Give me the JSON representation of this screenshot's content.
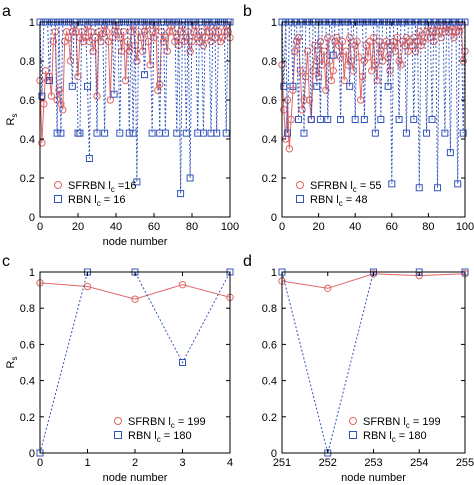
{
  "chart_data": [
    {
      "type": "line",
      "panel_label": "a",
      "xlabel": "node number",
      "ylabel": "R_s",
      "xlim": [
        0,
        100
      ],
      "ylim": [
        0,
        1
      ],
      "xticks": [
        0,
        20,
        40,
        60,
        80,
        100
      ],
      "yticks": [
        0,
        0.2,
        0.4,
        0.6,
        0.8,
        1
      ],
      "grid": false,
      "legend_position": "bottom-left",
      "series": [
        {
          "name": "SFRBN l_c =16",
          "color": "#e06666",
          "marker": "circle",
          "line": "solid",
          "x": [
            0,
            1,
            2,
            3,
            4,
            5,
            6,
            7,
            8,
            9,
            10,
            11,
            12,
            13,
            14,
            15,
            16,
            17,
            18,
            19,
            20,
            21,
            22,
            23,
            24,
            25,
            26,
            27,
            28,
            29,
            30,
            31,
            32,
            33,
            34,
            35,
            36,
            37,
            38,
            39,
            40,
            41,
            42,
            43,
            44,
            45,
            46,
            47,
            48,
            49,
            50,
            51,
            52,
            53,
            54,
            55,
            56,
            57,
            58,
            59,
            60,
            61,
            62,
            63,
            64,
            65,
            66,
            67,
            68,
            69,
            70,
            71,
            72,
            73,
            74,
            75,
            76,
            77,
            78,
            79,
            80,
            81,
            82,
            83,
            84,
            85,
            86,
            87,
            88,
            89,
            90,
            91,
            92,
            93,
            94,
            95,
            96,
            97,
            98,
            99,
            100
          ],
          "y": [
            0.7,
            0.38,
            0.58,
            0.75,
            0.7,
            0.72,
            0.62,
            0.9,
            0.95,
            0.6,
            0.65,
            0.58,
            0.55,
            0.9,
            0.95,
            0.92,
            0.8,
            0.95,
            0.98,
            0.95,
            0.72,
            0.92,
            0.95,
            0.9,
            0.92,
            0.98,
            0.9,
            0.95,
            0.85,
            0.92,
            0.62,
            0.95,
            0.9,
            0.94,
            0.98,
            0.95,
            0.9,
            0.6,
            0.92,
            0.95,
            0.98,
            0.95,
            0.92,
            0.85,
            0.95,
            0.7,
            0.9,
            0.85,
            0.95,
            0.98,
            0.88,
            0.8,
            0.95,
            0.92,
            0.85,
            0.95,
            0.98,
            0.9,
            0.78,
            0.95,
            0.92,
            0.98,
            0.65,
            0.68,
            0.95,
            0.9,
            0.92,
            0.85,
            0.95,
            0.98,
            0.95,
            0.9,
            0.92,
            0.88,
            0.95,
            0.98,
            0.9,
            0.92,
            0.95,
            0.85,
            0.9,
            0.95,
            0.98,
            0.92,
            0.9,
            0.95,
            0.88,
            0.92,
            0.98,
            0.95,
            0.9,
            0.95,
            0.92,
            0.98,
            0.95,
            0.9,
            0.92,
            0.95,
            0.98,
            0.95,
            0.92
          ]
        },
        {
          "name": "RBN l_c = 16",
          "color": "#3355bb",
          "marker": "square",
          "line": "dotted",
          "x": [
            0,
            1,
            2,
            3,
            4,
            5,
            6,
            7,
            8,
            9,
            10,
            11,
            12,
            13,
            14,
            15,
            16,
            17,
            18,
            19,
            20,
            21,
            22,
            23,
            24,
            25,
            26,
            27,
            28,
            29,
            30,
            31,
            32,
            33,
            34,
            35,
            36,
            37,
            38,
            39,
            40,
            41,
            42,
            43,
            44,
            45,
            46,
            47,
            48,
            49,
            50,
            51,
            52,
            53,
            54,
            55,
            56,
            57,
            58,
            59,
            60,
            61,
            62,
            63,
            64,
            65,
            66,
            67,
            68,
            69,
            70,
            71,
            72,
            73,
            74,
            75,
            76,
            77,
            78,
            79,
            80,
            81,
            82,
            83,
            84,
            85,
            86,
            87,
            88,
            89,
            90,
            91,
            92,
            93,
            94,
            95,
            96,
            97,
            98,
            99,
            100
          ],
          "y": [
            1,
            0.62,
            1,
            1,
            1,
            0.7,
            1,
            1,
            1,
            0.43,
            1,
            0.43,
            1,
            1,
            1,
            1,
            1,
            0.67,
            1,
            1,
            0.43,
            0.43,
            1,
            1,
            1,
            0.67,
            0.3,
            1,
            1,
            1,
            0.43,
            1,
            1,
            1,
            0.43,
            1,
            1,
            1,
            1,
            0.63,
            1,
            1,
            0.43,
            1,
            1,
            1,
            1,
            0.43,
            1,
            0.43,
            1,
            0.18,
            1,
            1,
            1,
            0.73,
            1,
            1,
            1,
            0.43,
            1,
            1,
            1,
            0.43,
            1,
            1,
            0.43,
            1,
            1,
            1,
            1,
            1,
            0.43,
            1,
            0.12,
            1,
            1,
            0.43,
            1,
            0.2,
            1,
            1,
            1,
            0.43,
            1,
            1,
            0.43,
            1,
            1,
            1,
            0.43,
            1,
            1,
            0.43,
            1,
            1,
            1,
            1,
            0.43,
            1,
            1
          ]
        }
      ]
    },
    {
      "type": "line",
      "panel_label": "b",
      "xlabel": "",
      "ylabel": "",
      "xlim": [
        0,
        100
      ],
      "ylim": [
        0,
        1
      ],
      "xticks": [
        0,
        20,
        40,
        60,
        80,
        100
      ],
      "yticks": [
        0,
        0.2,
        0.4,
        0.6,
        0.8,
        1
      ],
      "grid": false,
      "legend_position": "bottom-left",
      "series": [
        {
          "name": "SFRBN l_c = 55",
          "color": "#e06666",
          "marker": "circle",
          "line": "solid",
          "x": [
            0,
            1,
            2,
            3,
            4,
            5,
            6,
            7,
            8,
            9,
            10,
            11,
            12,
            13,
            14,
            15,
            16,
            17,
            18,
            19,
            20,
            21,
            22,
            23,
            24,
            25,
            26,
            27,
            28,
            29,
            30,
            31,
            32,
            33,
            34,
            35,
            36,
            37,
            38,
            39,
            40,
            41,
            42,
            43,
            44,
            45,
            46,
            47,
            48,
            49,
            50,
            51,
            52,
            53,
            54,
            55,
            56,
            57,
            58,
            59,
            60,
            61,
            62,
            63,
            64,
            65,
            66,
            67,
            68,
            69,
            70,
            71,
            72,
            73,
            74,
            75,
            76,
            77,
            78,
            79,
            80,
            81,
            82,
            83,
            84,
            85,
            86,
            87,
            88,
            89,
            90,
            91,
            92,
            93,
            94,
            95,
            96,
            97,
            98,
            99,
            100
          ],
          "y": [
            0.78,
            0.55,
            0.4,
            0.6,
            0.35,
            0.5,
            0.65,
            0.85,
            0.9,
            0.92,
            0.75,
            0.55,
            0.6,
            0.72,
            0.85,
            0.6,
            0.5,
            0.75,
            0.88,
            0.8,
            0.72,
            0.9,
            0.78,
            0.85,
            0.65,
            0.92,
            0.8,
            0.7,
            0.75,
            0.9,
            0.92,
            0.88,
            0.82,
            0.9,
            0.7,
            0.85,
            0.78,
            0.92,
            0.8,
            0.75,
            0.88,
            0.9,
            0.82,
            0.6,
            0.72,
            0.8,
            0.88,
            0.82,
            0.9,
            0.75,
            0.92,
            0.78,
            0.7,
            0.9,
            0.85,
            0.8,
            0.88,
            0.9,
            0.82,
            0.75,
            0.88,
            0.9,
            0.85,
            0.92,
            0.8,
            0.78,
            0.9,
            0.88,
            0.92,
            0.85,
            0.9,
            0.88,
            0.92,
            0.85,
            0.9,
            0.95,
            0.88,
            0.9,
            0.92,
            0.95,
            0.98,
            0.92,
            0.95,
            0.9,
            0.95,
            0.98,
            0.95,
            0.92,
            0.98,
            0.95,
            0.98,
            0.95,
            0.98,
            0.95,
            0.92,
            0.95,
            0.98,
            0.95,
            0.98,
            0.8,
            0.85
          ]
        },
        {
          "name": "RBN l_c = 48",
          "color": "#3355bb",
          "marker": "square",
          "line": "dotted",
          "x": [
            0,
            1,
            2,
            3,
            4,
            5,
            6,
            7,
            8,
            9,
            10,
            11,
            12,
            13,
            14,
            15,
            16,
            17,
            18,
            19,
            20,
            21,
            22,
            23,
            24,
            25,
            26,
            27,
            28,
            29,
            30,
            31,
            32,
            33,
            34,
            35,
            36,
            37,
            38,
            39,
            40,
            41,
            42,
            43,
            44,
            45,
            46,
            47,
            48,
            49,
            50,
            51,
            52,
            53,
            54,
            55,
            56,
            57,
            58,
            59,
            60,
            61,
            62,
            63,
            64,
            65,
            66,
            67,
            68,
            69,
            70,
            71,
            72,
            73,
            74,
            75,
            76,
            77,
            78,
            79,
            80,
            81,
            82,
            83,
            84,
            85,
            86,
            87,
            88,
            89,
            90,
            91,
            92,
            93,
            94,
            95,
            96,
            97,
            98,
            99,
            100
          ],
          "y": [
            1,
            0.67,
            1,
            0.43,
            1,
            1,
            0.67,
            1,
            1,
            0.5,
            1,
            1,
            0.43,
            1,
            1,
            1,
            0.5,
            1,
            1,
            0.67,
            1,
            0.5,
            1,
            1,
            1,
            0.5,
            1,
            1,
            0.83,
            1,
            1,
            1,
            0.5,
            1,
            1,
            1,
            1,
            0.67,
            1,
            1,
            0.5,
            1,
            1,
            1,
            1,
            0.5,
            1,
            1,
            1,
            1,
            1,
            0.43,
            1,
            1,
            0.5,
            1,
            1,
            1,
            0.67,
            1,
            0.17,
            1,
            1,
            1,
            0.5,
            1,
            1,
            1,
            0.43,
            1,
            1,
            1,
            0.5,
            1,
            1,
            0.15,
            1,
            1,
            1,
            0.43,
            1,
            1,
            0.5,
            1,
            1,
            0.15,
            1,
            1,
            1,
            0.43,
            1,
            1,
            0.33,
            1,
            1,
            1,
            0.17,
            1,
            1,
            0.43,
            1
          ]
        }
      ]
    },
    {
      "type": "line",
      "panel_label": "c",
      "xlabel": "node number",
      "ylabel": "R_s",
      "xlim": [
        0,
        4
      ],
      "ylim": [
        0,
        1
      ],
      "xticks": [
        0,
        1,
        2,
        3,
        4
      ],
      "yticks": [
        0,
        0.2,
        0.4,
        0.6,
        0.8,
        1
      ],
      "grid": false,
      "legend_position": "bottom-right",
      "series": [
        {
          "name": "SFRBN l_c = 199",
          "color": "#e06666",
          "marker": "circle",
          "line": "solid",
          "x": [
            0,
            1,
            2,
            3,
            4
          ],
          "y": [
            0.94,
            0.92,
            0.85,
            0.93,
            0.86
          ]
        },
        {
          "name": "RBN l_c = 180",
          "color": "#3355bb",
          "marker": "square",
          "line": "dotted",
          "x": [
            0,
            1,
            2,
            3,
            4
          ],
          "y": [
            0,
            1,
            1,
            0.5,
            1
          ]
        }
      ]
    },
    {
      "type": "line",
      "panel_label": "d",
      "xlabel": "node number",
      "ylabel": "",
      "xlim": [
        251,
        255
      ],
      "ylim": [
        0,
        1
      ],
      "xticks": [
        251,
        252,
        253,
        254,
        255
      ],
      "yticks": [
        0,
        0.2,
        0.4,
        0.6,
        0.8,
        1
      ],
      "grid": false,
      "legend_position": "bottom-right",
      "series": [
        {
          "name": "SFRBN l_c = 199",
          "color": "#e06666",
          "marker": "circle",
          "line": "solid",
          "x": [
            251,
            252,
            253,
            254,
            255
          ],
          "y": [
            0.95,
            0.91,
            0.99,
            0.98,
            0.99
          ]
        },
        {
          "name": "RBN l_c = 180",
          "color": "#3355bb",
          "marker": "square",
          "line": "dotted",
          "x": [
            251,
            252,
            253,
            254,
            255
          ],
          "y": [
            1,
            0,
            1,
            1,
            1
          ]
        }
      ]
    }
  ]
}
